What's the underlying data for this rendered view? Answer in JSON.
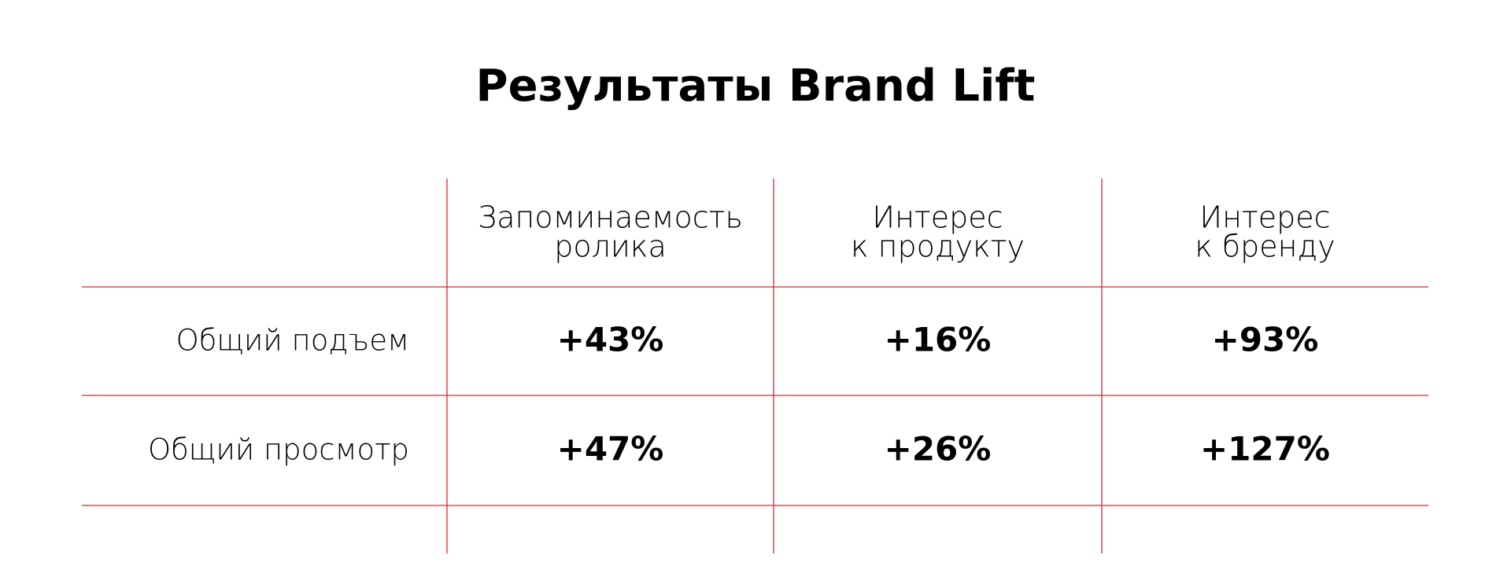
{
  "header": {
    "title": "Результаты Brand Lift"
  },
  "table": {
    "columns": [
      [
        "Запоминаемость",
        "ролика"
      ],
      [
        "Интерес",
        "к продукту"
      ],
      [
        "Интерес",
        "к бренду"
      ]
    ],
    "rows": [
      [
        "Общий подъем",
        "+43%",
        "+16%",
        "+93%"
      ],
      [
        "Общий просмотр",
        "+47%",
        "+26%",
        "+127%"
      ]
    ]
  }
}
